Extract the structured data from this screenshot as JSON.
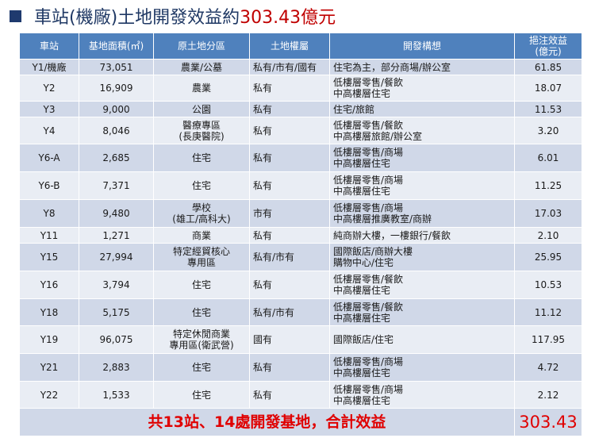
{
  "title": {
    "text": "車站(機廠)土地開發效益約",
    "accent": "303.43億元"
  },
  "table": {
    "headers": {
      "station": "車站",
      "area": "基地面積(㎡)",
      "zoning": "原土地分區",
      "ownership": "土地權屬",
      "plan": "開發構想",
      "benefit_line1": "挹注效益",
      "benefit_line2": "(億元)"
    },
    "rows": [
      {
        "station": "Y1/機廠",
        "area": "73,051",
        "zoning": [
          "農業/公墓"
        ],
        "ownership": "私有/市有/國有",
        "plan": [
          "住宅為主，部分商場/辦公室"
        ],
        "benefit": "61.85"
      },
      {
        "station": "Y2",
        "area": "16,909",
        "zoning": [
          "農業"
        ],
        "ownership": "私有",
        "plan": [
          "低樓層零售/餐飲",
          "中高樓層住宅"
        ],
        "benefit": "18.07"
      },
      {
        "station": "Y3",
        "area": "9,000",
        "zoning": [
          "公園"
        ],
        "ownership": "私有",
        "plan": [
          "住宅/旅館"
        ],
        "benefit": "11.53"
      },
      {
        "station": "Y4",
        "area": "8,046",
        "zoning": [
          "醫療專區",
          "(長庚醫院)"
        ],
        "ownership": "私有",
        "plan": [
          "低樓層零售/餐飲",
          "中高樓層旅館/辦公室"
        ],
        "benefit": "3.20"
      },
      {
        "station": "Y6-A",
        "area": "2,685",
        "zoning": [
          "住宅"
        ],
        "ownership": "私有",
        "plan": [
          "低樓層零售/商場",
          "中高樓層住宅"
        ],
        "benefit": "6.01"
      },
      {
        "station": "Y6-B",
        "area": "7,371",
        "zoning": [
          "住宅"
        ],
        "ownership": "私有",
        "plan": [
          "低樓層零售/商場",
          "中高樓層住宅"
        ],
        "benefit": "11.25"
      },
      {
        "station": "Y8",
        "area": "9,480",
        "zoning": [
          "學校",
          "(雄工/高科大)"
        ],
        "ownership": "市有",
        "plan": [
          "低樓層零售/商場",
          "中高樓層推廣教室/商辦"
        ],
        "benefit": "17.03"
      },
      {
        "station": "Y11",
        "area": "1,271",
        "zoning": [
          "商業"
        ],
        "ownership": "私有",
        "plan": [
          "純商辦大樓，一樓銀行/餐飲"
        ],
        "benefit": "2.10"
      },
      {
        "station": "Y15",
        "area": "27,994",
        "zoning": [
          "特定經貿核心",
          "專用區"
        ],
        "ownership": "私有/市有",
        "plan": [
          "國際飯店/商辦大樓",
          "購物中心/住宅"
        ],
        "benefit": "25.95"
      },
      {
        "station": "Y16",
        "area": "3,794",
        "zoning": [
          "住宅"
        ],
        "ownership": "私有",
        "plan": [
          "低樓層零售/餐飲",
          "中高樓層住宅"
        ],
        "benefit": "10.53"
      },
      {
        "station": "Y18",
        "area": "5,175",
        "zoning": [
          "住宅"
        ],
        "ownership": "私有/市有",
        "plan": [
          "低樓層零售/餐飲",
          "中高樓層住宅"
        ],
        "benefit": "11.12"
      },
      {
        "station": "Y19",
        "area": "96,075",
        "zoning": [
          "特定休閒商業",
          "專用區(衛武營)"
        ],
        "ownership": "國有",
        "plan": [
          "國際飯店/住宅"
        ],
        "benefit": "117.95"
      },
      {
        "station": "Y21",
        "area": "2,883",
        "zoning": [
          "住宅"
        ],
        "ownership": "私有",
        "plan": [
          "低樓層零售/商場",
          "中高樓層住宅"
        ],
        "benefit": "4.72"
      },
      {
        "station": "Y22",
        "area": "1,533",
        "zoning": [
          "住宅"
        ],
        "ownership": "私有",
        "plan": [
          "低樓層零售/商場",
          "中高樓層住宅"
        ],
        "benefit": "2.12"
      }
    ],
    "total": {
      "label": "共13站、14處開發基地，合計效益",
      "value": "303.43"
    }
  },
  "colors": {
    "header_bg": "#4f81bd",
    "row_dark": "#d0d8e8",
    "row_light": "#e9edf4",
    "title": "#1f3864",
    "accent": "#c00000",
    "total_text": "#e00000"
  }
}
